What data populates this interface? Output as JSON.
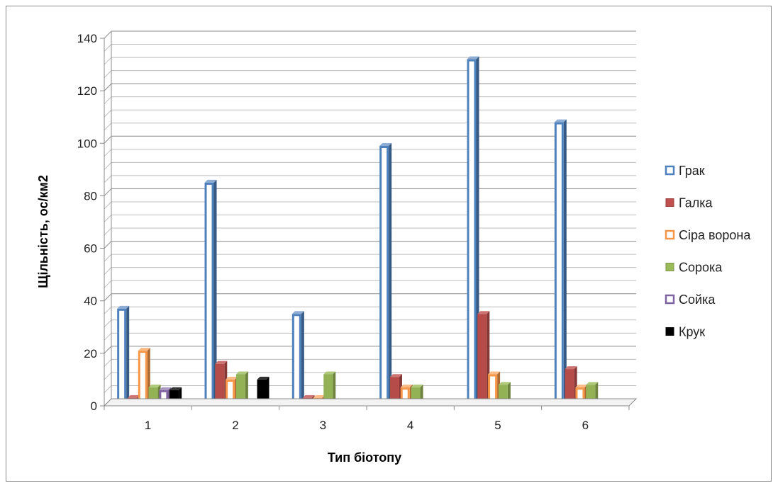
{
  "chart_data": {
    "type": "bar",
    "title": "",
    "xlabel": "Тип біотопу",
    "ylabel": "Щільність, ос/км2",
    "ylim": [
      0,
      140
    ],
    "ytick_step": 20,
    "grid": true,
    "legend_position": "right",
    "categories": [
      "1",
      "2",
      "3",
      "4",
      "5",
      "6"
    ],
    "y_ticks": [
      "0",
      "20",
      "40",
      "60",
      "80",
      "100",
      "120",
      "140"
    ],
    "series": [
      {
        "name": "Грак",
        "color": "#4f81bd",
        "style": "hollow",
        "values": [
          37,
          85,
          35,
          99,
          132,
          108
        ]
      },
      {
        "name": "Галка",
        "color": "#c0504d",
        "style": "filled",
        "values": [
          3,
          16,
          3,
          11,
          35,
          14
        ]
      },
      {
        "name": "Сіра ворона",
        "color": "#f79646",
        "style": "hollow",
        "values": [
          21,
          10,
          3,
          7,
          12,
          7
        ]
      },
      {
        "name": "Сорока",
        "color": "#9bbb59",
        "style": "filled",
        "values": [
          7,
          12,
          12,
          7,
          8,
          8
        ]
      },
      {
        "name": "Сойка",
        "color": "#8064a2",
        "style": "hollow",
        "values": [
          6,
          0,
          1,
          1,
          1,
          0
        ]
      },
      {
        "name": "Крук",
        "color": "#000000",
        "style": "filled",
        "values": [
          6,
          10,
          0,
          0,
          0,
          0
        ]
      }
    ]
  }
}
